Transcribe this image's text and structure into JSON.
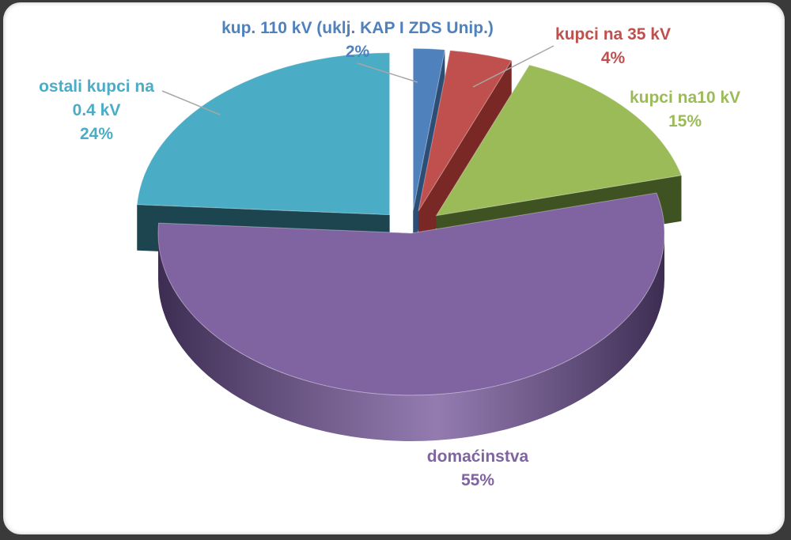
{
  "chart_data": {
    "type": "pie",
    "title": "",
    "slices": [
      {
        "key": "s110",
        "label": "kup. 110 kV (uklj. KAP I ZDS Unip.)",
        "label_lines": [
          "kup. 110 kV (uklj. KAP I ZDS Unip.)"
        ],
        "value": 2,
        "value_label": "2%",
        "color": "#4f81bd",
        "dark": "#2c4d75"
      },
      {
        "key": "s35",
        "label": "kupci na 35 kV",
        "label_lines": [
          "kupci na 35 kV"
        ],
        "value": 4,
        "value_label": "4%",
        "color": "#c0504d",
        "dark": "#7a2826"
      },
      {
        "key": "s10",
        "label": "kupci na10 kV",
        "label_lines": [
          "kupci na10 kV"
        ],
        "value": 15,
        "value_label": "15%",
        "color": "#9bbb59",
        "dark": "#3f5221"
      },
      {
        "key": "sdom",
        "label": "domaćinstva",
        "label_lines": [
          "domaćinstva"
        ],
        "value": 55,
        "value_label": "55%",
        "color": "#8064a2",
        "dark": "#3d2d52"
      },
      {
        "key": "s04",
        "label": "ostali kupci na 0.4 kV",
        "label_lines": [
          "ostali kupci na",
          "0.4 kV"
        ],
        "value": 24,
        "value_label": "24%",
        "color": "#4bacc6",
        "dark": "#1c4550"
      }
    ]
  }
}
